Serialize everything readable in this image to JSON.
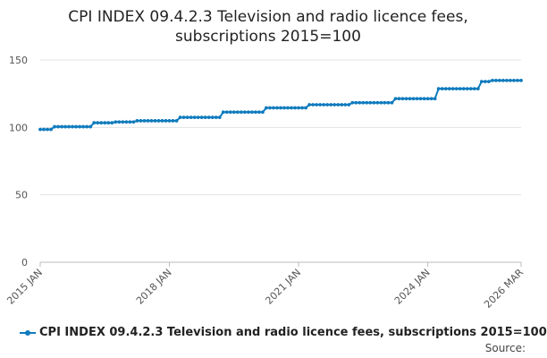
{
  "chart_data": {
    "type": "line",
    "title": "CPI INDEX 09.4.2.3 Television and radio licence fees, subscriptions 2015=100",
    "title_lines": [
      "CPI INDEX 09.4.2.3 Television and radio licence fees,",
      "subscriptions 2015=100"
    ],
    "xlabel": "",
    "ylabel": "",
    "ylim": [
      0,
      150
    ],
    "yticks": [
      0,
      50,
      100,
      150
    ],
    "xticks": [
      {
        "label": "2015 JAN",
        "date": "2015-01"
      },
      {
        "label": "2018 JAN",
        "date": "2018-01"
      },
      {
        "label": "2021 JAN",
        "date": "2021-01"
      },
      {
        "label": "2024 JAN",
        "date": "2024-01"
      },
      {
        "label": "2026 MAR",
        "date": "2026-03"
      }
    ],
    "xlim": [
      "2015-01",
      "2026-03"
    ],
    "grid": "horizontal",
    "legend_position": "bottom",
    "color": "#0f7bbd",
    "series": [
      {
        "name": "CPI INDEX 09.4.2.3 Television and radio licence fees, subscriptions 2015=100",
        "segments": [
          {
            "from": "2015-01",
            "to": "2015-04",
            "value": 98.5
          },
          {
            "from": "2015-05",
            "to": "2016-03",
            "value": 100.5
          },
          {
            "from": "2016-04",
            "to": "2016-09",
            "value": 103.4
          },
          {
            "from": "2016-10",
            "to": "2017-03",
            "value": 104.0
          },
          {
            "from": "2017-04",
            "to": "2018-03",
            "value": 104.9
          },
          {
            "from": "2018-04",
            "to": "2019-03",
            "value": 107.4
          },
          {
            "from": "2019-04",
            "to": "2020-03",
            "value": 111.3
          },
          {
            "from": "2020-04",
            "to": "2021-03",
            "value": 114.5
          },
          {
            "from": "2021-04",
            "to": "2022-03",
            "value": 116.8
          },
          {
            "from": "2022-04",
            "to": "2023-03",
            "value": 118.3
          },
          {
            "from": "2023-04",
            "to": "2024-03",
            "value": 121.3
          },
          {
            "from": "2024-04",
            "to": "2025-03",
            "value": 128.7
          },
          {
            "from": "2025-04",
            "to": "2025-06",
            "value": 134.0
          },
          {
            "from": "2025-07",
            "to": "2026-03",
            "value": 134.8
          }
        ]
      }
    ]
  },
  "legend": {
    "label": "CPI INDEX 09.4.2.3 Television and radio licence fees, subscriptions 2015=100"
  },
  "source_label": "Source:"
}
